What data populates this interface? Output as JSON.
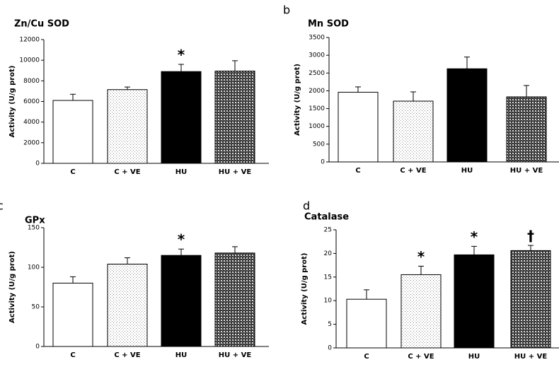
{
  "chart_data": [
    {
      "type": "bar",
      "title": "Zn/Cu SOD",
      "y_label": "Activity  (U/g prot)",
      "categories": [
        "C",
        "C + VE",
        "HU",
        "HU + VE"
      ],
      "values": [
        6100,
        7150,
        8900,
        8950
      ],
      "errors": [
        600,
        250,
        700,
        1000
      ],
      "bar_labels": [
        null,
        null,
        "*",
        null
      ],
      "ylim": [
        0,
        12000
      ],
      "yticks": [
        0,
        2000,
        4000,
        6000,
        8000,
        10000,
        12000
      ]
    },
    {
      "type": "bar",
      "panel": "b",
      "title": "Mn SOD",
      "y_label": "Activity (U/g prot)",
      "categories": [
        "C",
        "C + VE",
        "HU",
        "HU + VE"
      ],
      "values": [
        1960,
        1710,
        2620,
        1830
      ],
      "errors": [
        150,
        260,
        330,
        320
      ],
      "bar_labels": [
        null,
        null,
        null,
        null
      ],
      "ylim": [
        0,
        3500
      ],
      "yticks": [
        0,
        500,
        1000,
        1500,
        2000,
        2500,
        3000,
        3500
      ]
    },
    {
      "type": "bar",
      "panel": "c",
      "title": "GPx",
      "y_label": "Activity (U/g prot)",
      "categories": [
        "C",
        "C + VE",
        "HU",
        "HU + VE"
      ],
      "values": [
        80,
        104,
        115,
        118
      ],
      "errors": [
        8,
        8,
        8,
        8
      ],
      "bar_labels": [
        null,
        null,
        "*",
        null
      ],
      "ylim": [
        0,
        150
      ],
      "yticks": [
        0,
        50,
        100,
        150
      ]
    },
    {
      "type": "bar",
      "panel": "d",
      "title": "Catalase",
      "y_label": "Activity (U/g prot)",
      "categories": [
        "C",
        "C + VE",
        "HU",
        "HU + VE"
      ],
      "values": [
        10.3,
        15.5,
        19.7,
        20.6
      ],
      "errors": [
        2,
        1.8,
        1.8,
        1.1
      ],
      "bar_labels": [
        null,
        "*",
        "*",
        "†"
      ],
      "ylim": [
        0,
        25
      ],
      "yticks": [
        0,
        5,
        10,
        15,
        20,
        25
      ]
    }
  ]
}
